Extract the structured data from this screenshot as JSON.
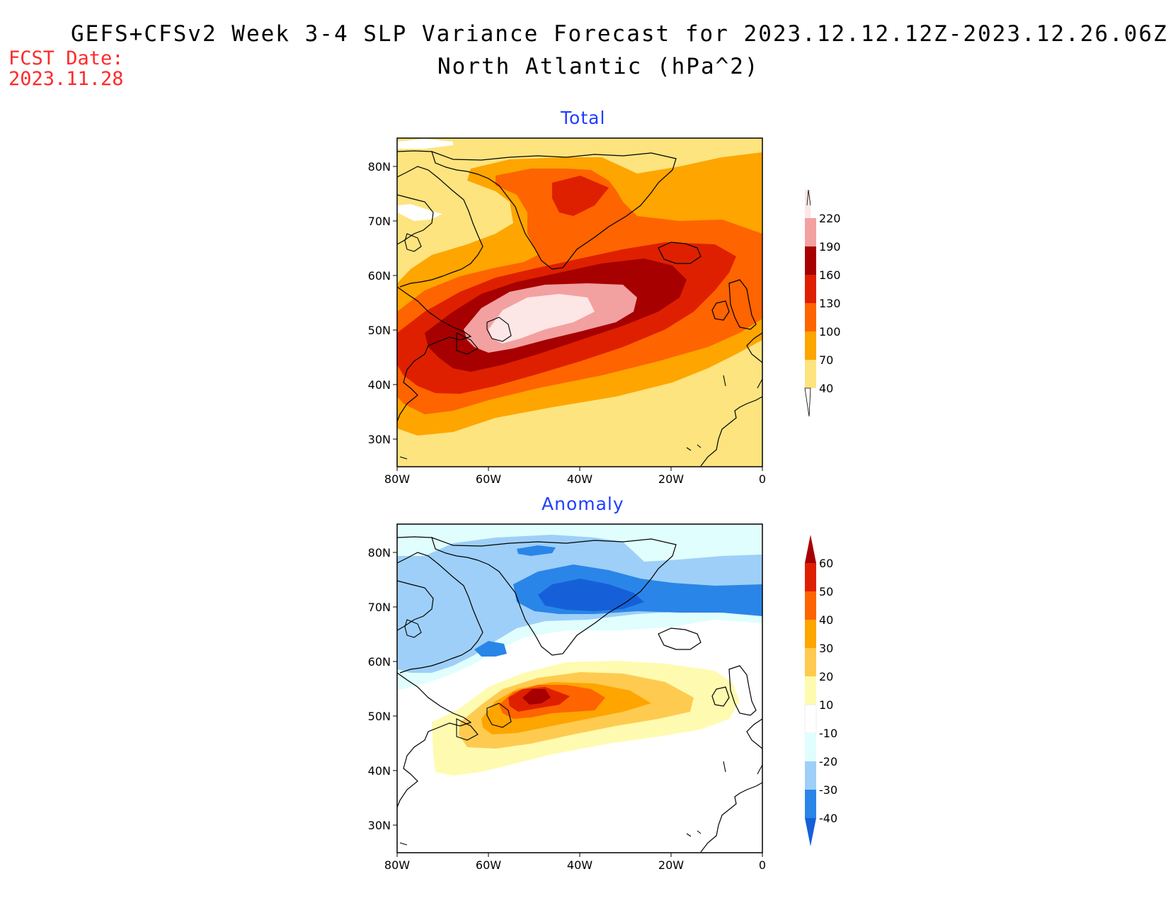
{
  "header": {
    "title": "GEFS+CFSv2 Week 3-4 SLP Variance Forecast for 2023.12.12.12Z-2023.12.26.06Z",
    "subtitle": "North Atlantic (hPa^2)",
    "fcst_label": "FCST Date:",
    "fcst_date": "2023.11.28"
  },
  "axes": {
    "lat_labels": [
      "80N",
      "70N",
      "60N",
      "50N",
      "40N",
      "30N"
    ],
    "lon_labels": [
      "80W",
      "60W",
      "40W",
      "20W",
      "0"
    ],
    "lat_range": [
      25,
      85
    ],
    "lon_range": [
      -80,
      0
    ]
  },
  "panels": [
    {
      "title": "Total",
      "colorbar": {
        "levels": [
          "40",
          "70",
          "100",
          "130",
          "160",
          "190",
          "220"
        ],
        "colors": [
          "#fde47f",
          "#fea500",
          "#fe6400",
          "#de2000",
          "#a60000",
          "#f3a0a0",
          "#fde6e6"
        ]
      }
    },
    {
      "title": "Anomaly",
      "colorbar": {
        "levels": [
          "-40",
          "-30",
          "-20",
          "-10",
          "10",
          "20",
          "30",
          "40",
          "50",
          "60"
        ],
        "colors": [
          "#1560d8",
          "#2a85e8",
          "#9ecff8",
          "#e0fefe",
          "#ffffff",
          "#fefbb0",
          "#fecb50",
          "#fea500",
          "#fe6400",
          "#de2000",
          "#a60000"
        ]
      }
    }
  ]
}
